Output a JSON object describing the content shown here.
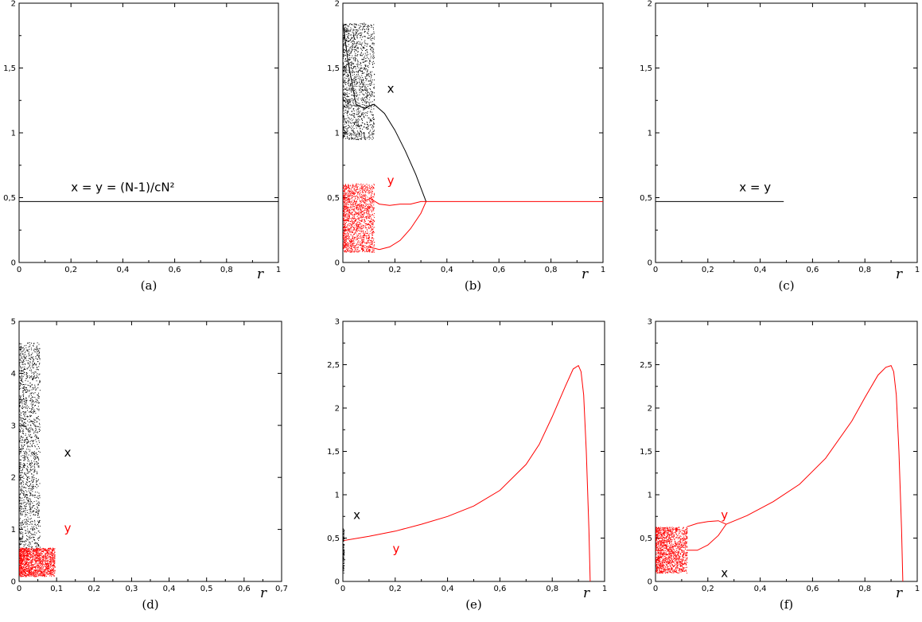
{
  "chart_data": [
    {
      "panel": "a",
      "type": "line",
      "caption": "(a)",
      "xlabel": "r",
      "xlim": [
        0,
        1
      ],
      "ylim": [
        0,
        2
      ],
      "xticks": [
        "0",
        "0,2",
        "0,4",
        "0,6",
        "0,8",
        "1"
      ],
      "yticks": [
        "0",
        "0,5",
        "1",
        "1,5",
        "2"
      ],
      "series": [
        {
          "color": "#000000",
          "x": [
            0,
            1
          ],
          "y": [
            0.47,
            0.47
          ]
        }
      ],
      "annotations": [
        {
          "text": "x = y = (N-1)/cN²",
          "x": 0.2,
          "y": 0.55,
          "color": "#000000"
        }
      ]
    },
    {
      "panel": "b",
      "type": "scatter",
      "caption": "(b)",
      "xlabel": "r",
      "xlim": [
        0,
        1
      ],
      "ylim": [
        0,
        2
      ],
      "xticks": [
        "0",
        "0,2",
        "0,4",
        "0,6",
        "0,8",
        "1"
      ],
      "yticks": [
        "0",
        "0,5",
        "1",
        "1,5",
        "2"
      ],
      "series": [
        {
          "kind": "cloud",
          "color": "#000000",
          "xrange": [
            0.0,
            0.12
          ],
          "yrange": [
            0.95,
            1.85
          ],
          "density": 1400
        },
        {
          "kind": "line",
          "color": "#000000",
          "x": [
            0.0,
            0.02,
            0.05,
            0.08,
            0.12,
            0.16,
            0.2,
            0.24,
            0.28,
            0.32
          ],
          "y": [
            1.85,
            1.55,
            1.22,
            1.19,
            1.22,
            1.15,
            1.02,
            0.86,
            0.68,
            0.47
          ]
        },
        {
          "kind": "cloud",
          "color": "#ff0000",
          "xrange": [
            0.0,
            0.12
          ],
          "yrange": [
            0.08,
            0.61
          ],
          "density": 1600
        },
        {
          "kind": "line",
          "color": "#ff0000",
          "x": [
            0.1,
            0.14,
            0.18,
            0.22,
            0.26,
            0.3,
            0.32
          ],
          "y": [
            0.5,
            0.45,
            0.44,
            0.45,
            0.45,
            0.47,
            0.47
          ]
        },
        {
          "kind": "line",
          "color": "#ff0000",
          "x": [
            0.1,
            0.14,
            0.18,
            0.22,
            0.26,
            0.3,
            0.32
          ],
          "y": [
            0.12,
            0.1,
            0.12,
            0.17,
            0.26,
            0.38,
            0.47
          ]
        },
        {
          "kind": "line",
          "color": "#ff0000",
          "x": [
            0.32,
            1.0
          ],
          "y": [
            0.47,
            0.47
          ]
        }
      ],
      "annotations": [
        {
          "text": "x",
          "x": 0.17,
          "y": 1.31,
          "color": "#000000"
        },
        {
          "text": "y",
          "x": 0.17,
          "y": 1.2,
          "color": "#ff0000",
          "ref": "skip"
        },
        {
          "text": "y",
          "x": 0.17,
          "y": 0.19,
          "color": "#ff0000",
          "ref": "skip"
        }
      ]
    },
    {
      "panel": "c",
      "type": "line",
      "caption": "(c)",
      "xlabel": "r",
      "xlim": [
        0,
        1
      ],
      "ylim": [
        0,
        2
      ],
      "xticks": [
        "0",
        "0,2",
        "0,4",
        "0,6",
        "0,8",
        "1"
      ],
      "yticks": [
        "0",
        "0,5",
        "1",
        "1,5",
        "2"
      ],
      "series": [
        {
          "color": "#000000",
          "x": [
            0,
            0.49
          ],
          "y": [
            0.47,
            0.47
          ]
        }
      ],
      "annotations": [
        {
          "text": "x = y",
          "x": 0.32,
          "y": 0.55,
          "color": "#000000"
        }
      ]
    },
    {
      "panel": "d",
      "type": "scatter",
      "caption": "(d)",
      "xlabel": "r",
      "xlim": [
        0,
        0.7
      ],
      "ylim": [
        0,
        5
      ],
      "xticks": [
        "0",
        "0,1",
        "0,2",
        "0,3",
        "0,4",
        "0,5",
        "0,6",
        "0,7"
      ],
      "yticks": [
        "0",
        "1",
        "2",
        "3",
        "4",
        "5"
      ],
      "series": [
        {
          "kind": "cloud",
          "color": "#000000",
          "xrange": [
            0.0,
            0.055
          ],
          "yrange": [
            0.6,
            4.6
          ],
          "density": 1400
        },
        {
          "kind": "cloud",
          "color": "#ff0000",
          "xrange": [
            0.0,
            0.095
          ],
          "yrange": [
            0.1,
            0.65
          ],
          "density": 1500
        }
      ],
      "annotations": [
        {
          "text": "x",
          "x": 0.12,
          "y": 2.4,
          "color": "#000000"
        },
        {
          "text": "y",
          "x": 0.12,
          "y": 0.95,
          "color": "#ff0000"
        }
      ]
    },
    {
      "panel": "e",
      "type": "line",
      "caption": "(e)",
      "xlabel": "r",
      "xlim": [
        0,
        1
      ],
      "ylim": [
        0,
        3
      ],
      "xticks": [
        "0",
        "0,2",
        "0,4",
        "0,6",
        "0,8",
        "1"
      ],
      "yticks": [
        "0",
        "0,5",
        "1",
        "1,5",
        "2",
        "2,5",
        "3"
      ],
      "series": [
        {
          "color": "#ff0000",
          "x": [
            0.0,
            0.1,
            0.2,
            0.3,
            0.4,
            0.5,
            0.6,
            0.7,
            0.75,
            0.8,
            0.85,
            0.88,
            0.9,
            0.91,
            0.92,
            0.93,
            0.94,
            0.945
          ],
          "y": [
            0.47,
            0.52,
            0.58,
            0.66,
            0.75,
            0.87,
            1.05,
            1.35,
            1.58,
            1.9,
            2.25,
            2.45,
            2.49,
            2.42,
            2.15,
            1.5,
            0.6,
            0.0
          ]
        },
        {
          "kind": "cloud",
          "color": "#000000",
          "xrange": [
            0.0,
            0.004
          ],
          "yrange": [
            0.1,
            0.62
          ],
          "density": 80
        }
      ],
      "annotations": [
        {
          "text": "x",
          "x": 0.04,
          "y": 0.72,
          "color": "#000000"
        },
        {
          "text": "y",
          "x": 0.19,
          "y": 0.33,
          "color": "#ff0000"
        }
      ]
    },
    {
      "panel": "f",
      "type": "scatter",
      "caption": "(f)",
      "xlabel": "r",
      "xlim": [
        0,
        1
      ],
      "ylim": [
        0,
        3
      ],
      "xticks": [
        "0",
        "0,2",
        "0,4",
        "0,6",
        "0,8",
        "1"
      ],
      "yticks": [
        "0",
        "0,5",
        "1",
        "1,5",
        "2",
        "2,5",
        "3"
      ],
      "series": [
        {
          "kind": "cloud",
          "color": "#ff0000",
          "xrange": [
            0.0,
            0.12
          ],
          "yrange": [
            0.1,
            0.63
          ],
          "density": 1500
        },
        {
          "kind": "line",
          "color": "#ff0000",
          "x": [
            0.12,
            0.16,
            0.2,
            0.24,
            0.27
          ],
          "y": [
            0.63,
            0.67,
            0.69,
            0.7,
            0.66
          ]
        },
        {
          "kind": "line",
          "color": "#ff0000",
          "x": [
            0.12,
            0.16,
            0.2,
            0.24,
            0.27
          ],
          "y": [
            0.36,
            0.36,
            0.42,
            0.53,
            0.66
          ]
        },
        {
          "kind": "line",
          "color": "#ff0000",
          "x": [
            0.27,
            0.35,
            0.45,
            0.55,
            0.65,
            0.75,
            0.8,
            0.85,
            0.88,
            0.9,
            0.91,
            0.92,
            0.93,
            0.94,
            0.945
          ],
          "y": [
            0.66,
            0.76,
            0.92,
            1.12,
            1.42,
            1.85,
            2.12,
            2.38,
            2.47,
            2.49,
            2.42,
            2.15,
            1.5,
            0.6,
            0.0
          ]
        }
      ],
      "annotations": [
        {
          "text": "y",
          "x": 0.25,
          "y": 0.72,
          "color": "#ff0000"
        },
        {
          "text": "x",
          "x": 0.25,
          "y": 0.05,
          "color": "#000000"
        }
      ]
    }
  ]
}
